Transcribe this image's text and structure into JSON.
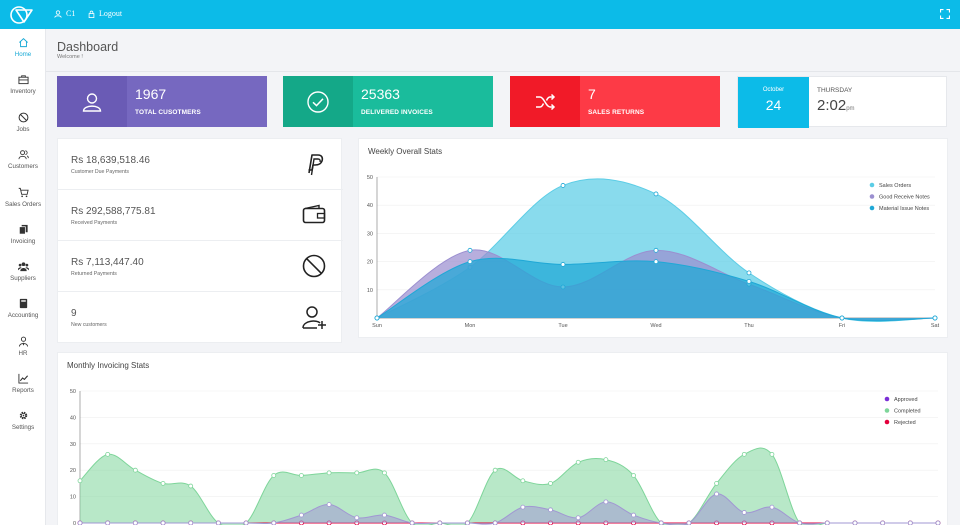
{
  "topbar": {
    "user": "C1",
    "logout": "Logout"
  },
  "sidebar": {
    "items": [
      {
        "label": "Home",
        "icon": "home-icon",
        "active": true
      },
      {
        "label": "Inventory",
        "icon": "briefcase-icon"
      },
      {
        "label": "Jobs",
        "icon": "no-entry-icon"
      },
      {
        "label": "Customers",
        "icon": "users-icon"
      },
      {
        "label": "Sales Orders",
        "icon": "cart-icon"
      },
      {
        "label": "Invoicing",
        "icon": "copy-icon"
      },
      {
        "label": "Suppliers",
        "icon": "group-icon"
      },
      {
        "label": "Accounting",
        "icon": "book-icon"
      },
      {
        "label": "HR",
        "icon": "user-tie-icon"
      },
      {
        "label": "Reports",
        "icon": "line-chart-icon"
      },
      {
        "label": "Settings",
        "icon": "gear-icon"
      }
    ]
  },
  "header": {
    "title": "Dashboard",
    "subtitle": "Welcome !"
  },
  "stats": [
    {
      "value": "1967",
      "label": "TOTAL CUSOTMERS",
      "color": "#7668c0",
      "icon": "user-icon"
    },
    {
      "value": "25363",
      "label": "DELIVERED INVOICES",
      "color": "#1abc9c",
      "icon": "check-circle-icon"
    },
    {
      "value": "7",
      "label": "SALES RETURNS",
      "color": "#fd3a46",
      "icon": "shuffle-icon"
    }
  ],
  "date": {
    "month": "October",
    "day": "24",
    "weekday": "THURSDAY",
    "time": "2:02",
    "ampm": "pm"
  },
  "payments": [
    {
      "amount": "Rs 18,639,518.46",
      "label": "Customer Due Payments",
      "icon": "paypal-icon"
    },
    {
      "amount": "Rs 292,588,775.81",
      "label": "Received Payments",
      "icon": "wallet-icon"
    },
    {
      "amount": "Rs 7,113,447.40",
      "label": "Returned Payments",
      "icon": "ban-icon"
    },
    {
      "amount": "9",
      "label": "New customers",
      "icon": "user-plus-icon"
    }
  ],
  "weekly": {
    "title": "Weekly Overall Stats"
  },
  "monthly": {
    "title": "Monthly Invoicing Stats"
  },
  "chart_data": [
    {
      "type": "area",
      "title": "Weekly Overall Stats",
      "x": [
        "Sun",
        "Mon",
        "Tue",
        "Wed",
        "Thu",
        "Fri",
        "Sat"
      ],
      "ylim": [
        0,
        50
      ],
      "yticks": [
        10,
        20,
        30,
        40,
        50
      ],
      "legend_position": "top-right",
      "series": [
        {
          "name": "Sales Orders",
          "color": "#5ccde6",
          "values": [
            0,
            18,
            47,
            44,
            16,
            0,
            0
          ]
        },
        {
          "name": "Good Receive Notes",
          "color": "#9b8fd0",
          "values": [
            0,
            24,
            11,
            24,
            12,
            0,
            0
          ]
        },
        {
          "name": "Material Issue Notes",
          "color": "#1fa8d6",
          "values": [
            0,
            20,
            19,
            20,
            13,
            0,
            0
          ]
        }
      ]
    },
    {
      "type": "area",
      "title": "Monthly Invoicing Stats",
      "ylim": [
        0,
        50
      ],
      "yticks": [
        0,
        10,
        20,
        30,
        40,
        50
      ],
      "legend_position": "top-right",
      "series": [
        {
          "name": "Approved",
          "color": "#7b2fd6",
          "values": [
            0,
            0,
            0,
            0,
            0,
            0,
            0,
            0,
            0,
            0,
            0,
            0,
            0,
            0,
            0,
            0,
            0,
            0,
            0,
            0,
            0,
            0,
            0,
            0,
            0,
            0,
            0,
            0,
            0,
            0,
            0,
            0
          ]
        },
        {
          "name": "Completed",
          "color": "#7ed59a",
          "values": [
            16,
            26,
            20,
            15,
            14,
            0,
            0,
            18,
            18,
            19,
            19,
            19,
            0,
            0,
            0,
            20,
            16,
            15,
            23,
            24,
            18,
            0,
            0,
            15,
            26,
            26,
            0,
            0,
            0,
            0,
            0,
            0
          ]
        },
        {
          "name": "Rejected",
          "color": "#e3003c",
          "values": [
            0,
            0,
            0,
            0,
            0,
            0,
            0,
            0,
            0,
            0,
            0,
            0,
            0,
            0,
            0,
            0,
            0,
            0,
            0,
            0,
            0,
            0,
            0,
            0,
            0,
            0,
            0,
            0,
            0,
            0,
            0,
            0
          ]
        },
        {
          "name": "",
          "color": "#a197d3",
          "values": [
            0,
            0,
            0,
            0,
            0,
            0,
            0,
            0,
            3,
            7,
            2,
            3,
            0,
            0,
            0,
            0,
            6,
            5,
            2,
            8,
            3,
            0,
            0,
            11,
            4,
            6,
            0,
            0,
            0,
            0,
            0,
            0
          ]
        }
      ]
    }
  ]
}
